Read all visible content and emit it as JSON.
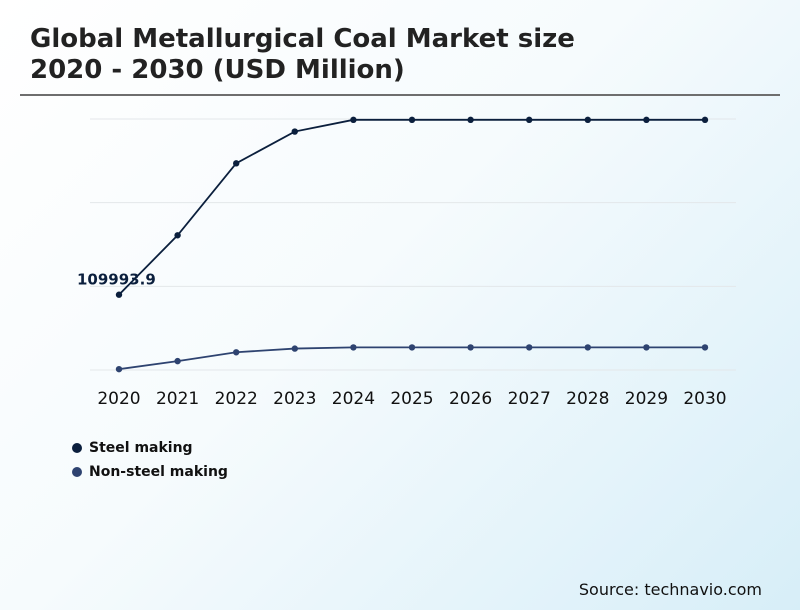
{
  "title_line1": "Global Metallurgical Coal Market size",
  "title_line2": "2020 - 2030 (USD Million)",
  "source": "Source: technavio.com",
  "chart_data": {
    "type": "line",
    "title": "Global Metallurgical Coal Market size 2020 - 2030 (USD Million)",
    "x": [
      "2020",
      "2021",
      "2022",
      "2023",
      "2024",
      "2025",
      "2026",
      "2027",
      "2028",
      "2029",
      "2030"
    ],
    "series": [
      {
        "name": "Steel making",
        "color": "#0b1f3d",
        "values": [
          109993.9,
          145500,
          188500,
          207500,
          214500,
          214500,
          214500,
          214500,
          214500,
          214500,
          214500
        ]
      },
      {
        "name": "Non-steel making",
        "color": "#2e4370",
        "values": [
          65500,
          70300,
          75600,
          77800,
          78500,
          78500,
          78500,
          78500,
          78500,
          78500,
          78500
        ]
      }
    ],
    "annotations": [
      {
        "series": 0,
        "index": 0,
        "text": "109993.9"
      }
    ],
    "ylim": [
      65000,
      215000
    ],
    "grid": true,
    "legend": "bottom-left"
  }
}
